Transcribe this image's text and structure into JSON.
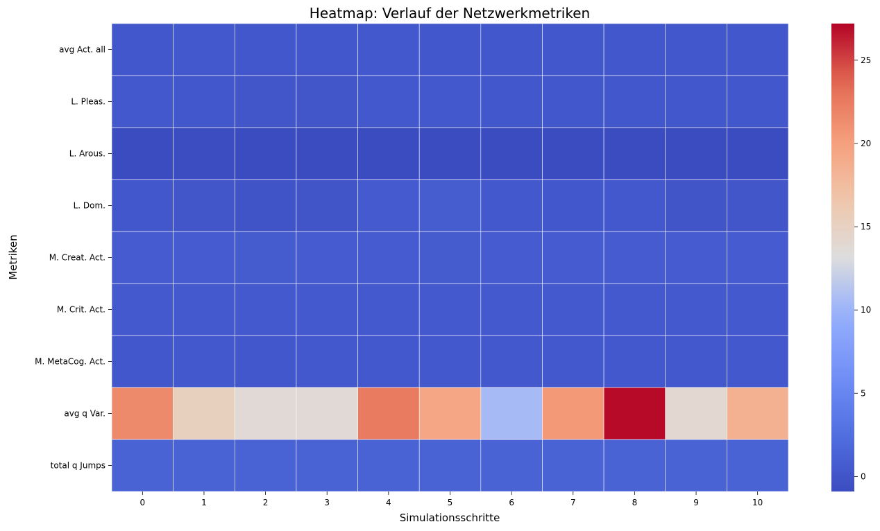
{
  "chart_data": {
    "type": "heatmap",
    "title": "Heatmap: Verlauf der Netzwerkmetriken",
    "xlabel": "Simulationsschritte",
    "ylabel": "Metriken",
    "x": [
      0,
      1,
      2,
      3,
      4,
      5,
      6,
      7,
      8,
      9,
      10
    ],
    "y": [
      "avg Act. all",
      "L. Pleas.",
      "L. Arous.",
      "L. Dom.",
      "M. Creat. Act.",
      "M. Crit. Act.",
      "M. MetaCog. Act.",
      "avg q Var.",
      "total q Jumps"
    ],
    "values": [
      [
        0.2,
        0.3,
        0.2,
        0.2,
        0.3,
        0.2,
        0.2,
        0.2,
        0.2,
        0.2,
        0.2
      ],
      [
        0.3,
        0.2,
        0.1,
        0.1,
        0.3,
        0.3,
        0.2,
        0.2,
        0.2,
        0.2,
        0.2
      ],
      [
        -0.9,
        -0.8,
        -0.9,
        -0.9,
        -0.9,
        -0.9,
        -0.9,
        -0.9,
        -0.9,
        -0.9,
        -0.9
      ],
      [
        0.2,
        0.1,
        -0.1,
        0.0,
        0.5,
        0.8,
        0.3,
        0.2,
        0.3,
        0.0,
        0.1
      ],
      [
        0.6,
        0.6,
        0.7,
        0.6,
        0.6,
        0.7,
        0.6,
        0.6,
        0.6,
        0.6,
        0.6
      ],
      [
        0.4,
        0.4,
        0.4,
        0.4,
        0.4,
        0.4,
        0.4,
        0.4,
        0.4,
        0.4,
        0.4
      ],
      [
        0.2,
        0.3,
        0.2,
        0.3,
        0.3,
        0.3,
        0.3,
        0.3,
        0.3,
        0.3,
        0.3
      ],
      [
        21.5,
        15.2,
        13.7,
        13.7,
        22.5,
        19.5,
        10.5,
        20.5,
        27.0,
        14.0,
        18.5
      ],
      [
        1.2,
        1.2,
        1.2,
        1.2,
        1.2,
        1.2,
        1.2,
        1.2,
        1.2,
        1.2,
        1.2
      ]
    ],
    "colorbar": {
      "min": -0.9,
      "max": 27.2,
      "ticks": [
        0,
        5,
        10,
        15,
        20,
        25
      ],
      "colormap": "coolwarm"
    },
    "grid": "white cell borders"
  }
}
